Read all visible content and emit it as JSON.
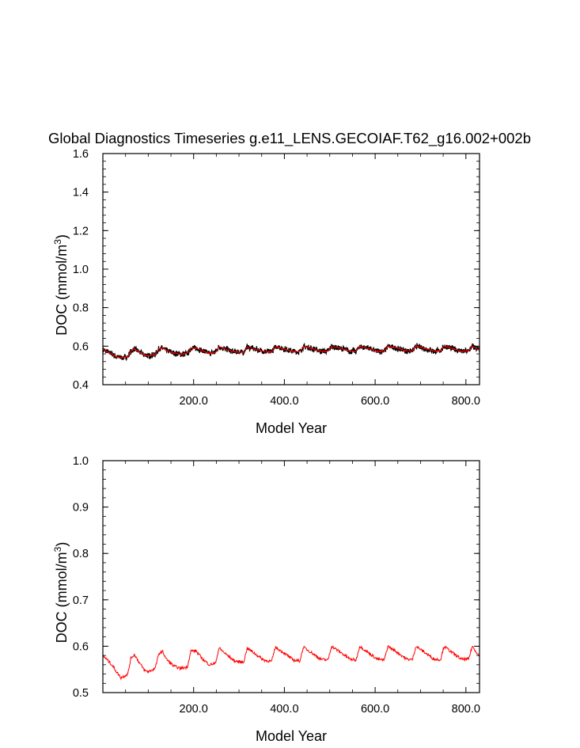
{
  "chart_data": [
    {
      "type": "line",
      "title": "Global Diagnostics Timeseries g.e11_LENS.GECOIAF.T62_g16.002+002b",
      "xlabel": "Model Year",
      "ylabel": "DOC (mmol/m",
      "ylabel_superscript": "3",
      "ylabel_close": ")",
      "xlim": [
        0,
        830
      ],
      "ylim": [
        0.4,
        1.6
      ],
      "xticks": [
        "200.0",
        "400.0",
        "600.0",
        "800.0"
      ],
      "yticks": [
        "0.4",
        "0.6",
        "0.8",
        "1.0",
        "1.2",
        "1.4",
        "1.6"
      ],
      "cycle": {
        "period": 62,
        "start": 0,
        "end": 830
      },
      "series": [
        {
          "color": "#000000",
          "style": "monthly (noisy)",
          "x": [
            0,
            10,
            20,
            30,
            40,
            55,
            62,
            70,
            80,
            92,
            100,
            115,
            124,
            132,
            140,
            155,
            170,
            186,
            194,
            205,
            220,
            235,
            248,
            256,
            270,
            290,
            310,
            318,
            335,
            355,
            372,
            380,
            400,
            420,
            434,
            442,
            460,
            480,
            496,
            504,
            525,
            545,
            558,
            566,
            585,
            605,
            620,
            628,
            650,
            670,
            682,
            690,
            710,
            730,
            744,
            752,
            770,
            790,
            806,
            814,
            830
          ],
          "y": [
            0.58,
            0.57,
            0.56,
            0.545,
            0.54,
            0.545,
            0.575,
            0.585,
            0.57,
            0.555,
            0.55,
            0.555,
            0.588,
            0.59,
            0.58,
            0.565,
            0.558,
            0.562,
            0.59,
            0.59,
            0.575,
            0.563,
            0.568,
            0.596,
            0.585,
            0.57,
            0.568,
            0.596,
            0.585,
            0.572,
            0.57,
            0.598,
            0.585,
            0.572,
            0.572,
            0.598,
            0.588,
            0.574,
            0.574,
            0.6,
            0.588,
            0.574,
            0.574,
            0.6,
            0.588,
            0.574,
            0.574,
            0.6,
            0.588,
            0.574,
            0.575,
            0.6,
            0.588,
            0.574,
            0.575,
            0.6,
            0.588,
            0.574,
            0.576,
            0.6,
            0.58
          ]
        },
        {
          "color": "#ff0000",
          "style": "annual mean",
          "x": [
            0,
            10,
            20,
            30,
            40,
            55,
            62,
            70,
            80,
            92,
            100,
            115,
            124,
            132,
            140,
            155,
            170,
            186,
            194,
            205,
            220,
            235,
            248,
            256,
            270,
            290,
            310,
            318,
            335,
            355,
            372,
            380,
            400,
            420,
            434,
            442,
            460,
            480,
            496,
            504,
            525,
            545,
            558,
            566,
            585,
            605,
            620,
            628,
            650,
            670,
            682,
            690,
            710,
            730,
            744,
            752,
            770,
            790,
            806,
            814,
            830
          ],
          "y": [
            0.58,
            0.57,
            0.56,
            0.545,
            0.54,
            0.545,
            0.575,
            0.585,
            0.57,
            0.555,
            0.55,
            0.555,
            0.588,
            0.59,
            0.58,
            0.565,
            0.558,
            0.562,
            0.59,
            0.59,
            0.575,
            0.563,
            0.568,
            0.596,
            0.585,
            0.57,
            0.568,
            0.596,
            0.585,
            0.572,
            0.57,
            0.598,
            0.585,
            0.572,
            0.572,
            0.598,
            0.588,
            0.574,
            0.574,
            0.6,
            0.588,
            0.574,
            0.574,
            0.6,
            0.588,
            0.574,
            0.574,
            0.6,
            0.588,
            0.574,
            0.575,
            0.6,
            0.588,
            0.574,
            0.575,
            0.6,
            0.588,
            0.574,
            0.576,
            0.6,
            0.58
          ]
        }
      ]
    },
    {
      "type": "line",
      "title": "",
      "xlabel": "Model Year",
      "ylabel": "DOC (mmol/m",
      "ylabel_superscript": "3",
      "ylabel_close": ")",
      "xlim": [
        0,
        830
      ],
      "ylim": [
        0.5,
        1.0
      ],
      "xticks": [
        "200.0",
        "400.0",
        "600.0",
        "800.0"
      ],
      "yticks": [
        "0.5",
        "0.6",
        "0.7",
        "0.8",
        "0.9",
        "1.0"
      ],
      "cycle": {
        "period": 62,
        "start": 0,
        "end": 830
      },
      "series": [
        {
          "color": "#ff0000",
          "style": "annual mean",
          "x": [
            0,
            10,
            20,
            30,
            40,
            55,
            62,
            70,
            80,
            92,
            100,
            115,
            124,
            132,
            140,
            155,
            170,
            186,
            194,
            205,
            220,
            235,
            248,
            256,
            270,
            290,
            310,
            318,
            335,
            355,
            372,
            380,
            400,
            420,
            434,
            442,
            460,
            480,
            496,
            504,
            525,
            545,
            558,
            566,
            585,
            605,
            620,
            628,
            650,
            670,
            682,
            690,
            710,
            730,
            744,
            752,
            770,
            790,
            806,
            814,
            830
          ],
          "y": [
            0.58,
            0.57,
            0.56,
            0.545,
            0.532,
            0.54,
            0.575,
            0.582,
            0.565,
            0.548,
            0.545,
            0.552,
            0.585,
            0.588,
            0.572,
            0.558,
            0.552,
            0.555,
            0.59,
            0.59,
            0.572,
            0.56,
            0.563,
            0.596,
            0.584,
            0.568,
            0.565,
            0.596,
            0.584,
            0.57,
            0.567,
            0.598,
            0.585,
            0.57,
            0.568,
            0.598,
            0.586,
            0.572,
            0.57,
            0.6,
            0.586,
            0.572,
            0.57,
            0.6,
            0.586,
            0.572,
            0.57,
            0.6,
            0.586,
            0.572,
            0.571,
            0.6,
            0.586,
            0.572,
            0.571,
            0.6,
            0.586,
            0.572,
            0.572,
            0.6,
            0.578
          ]
        }
      ]
    }
  ]
}
